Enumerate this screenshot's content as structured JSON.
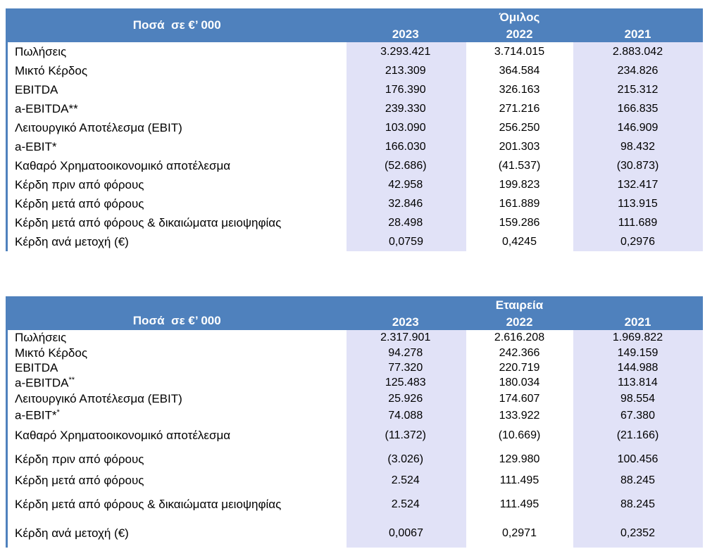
{
  "accent_color": "#4f81bd",
  "band_color": "#e1e2f7",
  "tables": [
    {
      "id": "group",
      "corner_label": "Ποσά  σε €’ 000",
      "scope_label": "Όμιλος",
      "years": [
        "2023",
        "2022",
        "2021"
      ],
      "rows": [
        {
          "label": "Πωλήσεις",
          "label_sup": "",
          "values": [
            "3.293.421",
            "3.714.015",
            "2.883.042"
          ]
        },
        {
          "label": "Μικτό Κέρδος",
          "label_sup": "",
          "values": [
            "213.309",
            "364.584",
            "234.826"
          ]
        },
        {
          "label": "EBITDA",
          "label_sup": "",
          "values": [
            "176.390",
            "326.163",
            "215.312"
          ]
        },
        {
          "label": "a-EBITDA**",
          "label_sup": "",
          "values": [
            "239.330",
            "271.216",
            "166.835"
          ]
        },
        {
          "label": "Λειτουργικό Αποτέλεσμα (EBIT)",
          "label_sup": "",
          "values": [
            "103.090",
            "256.250",
            "146.909"
          ]
        },
        {
          "label": "a-EBIT*",
          "label_sup": "",
          "values": [
            "166.030",
            "201.303",
            "98.432"
          ]
        },
        {
          "label": "Καθαρό Χρηματοοικονομικό αποτέλεσμα",
          "label_sup": "",
          "values": [
            "(52.686)",
            "(41.537)",
            "(30.873)"
          ]
        },
        {
          "label": "Κέρδη πριν από φόρους",
          "label_sup": "",
          "values": [
            "42.958",
            "199.823",
            "132.417"
          ]
        },
        {
          "label": "Κέρδη μετά από φόρους",
          "label_sup": "",
          "values": [
            "32.846",
            "161.889",
            "113.915"
          ]
        },
        {
          "label": "Κέρδη μετά από φόρους & δικαιώματα μειοψηφίας",
          "label_sup": "",
          "values": [
            "28.498",
            "159.286",
            "111.689"
          ]
        },
        {
          "label": "Κέρδη ανά μετοχή (€)",
          "label_sup": "",
          "values": [
            "0,0759",
            "0,4245",
            "0,2976"
          ]
        }
      ]
    },
    {
      "id": "company",
      "corner_label": "Ποσά  σε €’ 000",
      "scope_label": "Εταιρεία",
      "years": [
        "2023",
        "2022",
        "2021"
      ],
      "rows": [
        {
          "label": "Πωλήσεις",
          "label_sup": "",
          "values": [
            "2.317.901",
            "2.616.208",
            "1.969.822"
          ]
        },
        {
          "label": "Μικτό Κέρδος",
          "label_sup": "",
          "values": [
            "94.278",
            "242.366",
            "149.159"
          ]
        },
        {
          "label": "EBITDA",
          "label_sup": "",
          "values": [
            "77.320",
            "220.719",
            "144.988"
          ]
        },
        {
          "label": "a-EBITDA",
          "label_sup": "**",
          "values": [
            "125.483",
            "180.034",
            "113.814"
          ]
        },
        {
          "label": "Λειτουργικό Αποτέλεσμα (EBIT)",
          "label_sup": "",
          "values": [
            "25.926",
            "174.607",
            "98.554"
          ]
        },
        {
          "label": "a-EBIT*",
          "label_sup": "*",
          "values": [
            "74.088",
            "133.922",
            "67.380"
          ]
        },
        {
          "label": "Καθαρό Χρηματοοικονομικό αποτέλεσμα",
          "label_sup": "",
          "values": [
            "(11.372)",
            "(10.669)",
            "(21.166)"
          ]
        },
        {
          "label": "Κέρδη πριν από φόρους",
          "label_sup": "",
          "values": [
            "(3.026)",
            "129.980",
            "100.456"
          ]
        },
        {
          "label": "Κέρδη μετά από φόρους",
          "label_sup": "",
          "values": [
            "2.524",
            "111.495",
            "88.245"
          ]
        },
        {
          "label": "Κέρδη μετά από φόρους & δικαιώματα μειοψηφίας",
          "label_sup": "",
          "values": [
            "2.524",
            "111.495",
            "88.245"
          ]
        },
        {
          "label": "Κέρδη ανά μετοχή (€)",
          "label_sup": "",
          "values": [
            "0,0067",
            "0,2971",
            "0,2352"
          ]
        }
      ]
    }
  ]
}
